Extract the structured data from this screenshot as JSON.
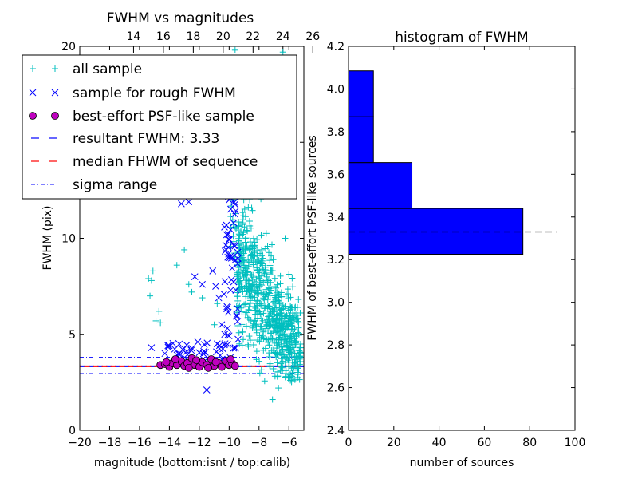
{
  "chart_data": [
    {
      "type": "scatter",
      "title": "FWHM vs magnitudes",
      "xlabel": "magnitude (bottom:isnt / top:calib)",
      "ylabel": "FWHM (pix)",
      "xlim": [
        -20,
        -5
      ],
      "ylim": [
        0,
        20
      ],
      "xticks": [
        "−20",
        "−18",
        "−16",
        "−14",
        "−12",
        "−10",
        "−8",
        "−6"
      ],
      "xtick_values": [
        -20,
        -18,
        -16,
        -14,
        -12,
        -10,
        -8,
        -6
      ],
      "top_xticks": [
        "14",
        "16",
        "18",
        "20",
        "22",
        "24",
        "26"
      ],
      "top_xtick_values": [
        -16.4,
        -14.4,
        -12.4,
        -10.4,
        -8.4,
        -6.4,
        -4.4
      ],
      "yticks": [
        "0",
        "5",
        "10",
        "15",
        "20"
      ],
      "ytick_values": [
        0,
        5,
        10,
        15,
        20
      ],
      "legend_position": "top-left",
      "colors": {
        "all": "#00bfbf",
        "rough": "#0000ff",
        "best": "#bf00bf",
        "result_line": "#0000ff",
        "median_line": "#ff0000",
        "sigma_line": "#0000ff"
      },
      "resultant_fwhm": 3.33,
      "median_fwhm": 3.33,
      "sigma_range": [
        2.95,
        3.8
      ],
      "series": [
        {
          "name": "all sample",
          "marker": "+",
          "points": [
            [
              -15.4,
              7.9
            ],
            [
              -15.2,
              7.8
            ],
            [
              -15.1,
              8.3
            ],
            [
              -15.3,
              7.0
            ],
            [
              -14.7,
              6.2
            ],
            [
              -14.9,
              5.7
            ],
            [
              -14.6,
              5.6
            ],
            [
              -13.5,
              8.6
            ],
            [
              -13.0,
              9.4
            ],
            [
              -12.7,
              7.6
            ],
            [
              -12.5,
              7.2
            ],
            [
              -11.8,
              6.9
            ],
            [
              -11.0,
              5.5
            ],
            [
              -10.8,
              6.6
            ],
            [
              -9.6,
              19.8
            ],
            [
              -9.1,
              18.6
            ],
            [
              -8.8,
              17.6
            ],
            [
              -8.3,
              19.1
            ],
            [
              -8.0,
              18.0
            ],
            [
              -7.4,
              18.5
            ],
            [
              -6.9,
              17.1
            ],
            [
              -6.4,
              19.7
            ],
            [
              -7.8,
              16.2
            ],
            [
              -9.4,
              15.6
            ],
            [
              -8.6,
              15.0
            ],
            [
              -6.0,
              14.5
            ],
            [
              -6.5,
              3.3
            ],
            [
              -6.2,
              2.8
            ],
            [
              -5.9,
              2.6
            ],
            [
              -7.1,
              1.6
            ],
            [
              -6.7,
              2.2
            ]
          ]
        },
        {
          "name": "sample for rough FWHM",
          "marker": "x",
          "points": [
            [
              -15.2,
              4.3
            ],
            [
              -13.2,
              11.8
            ],
            [
              -12.7,
              11.9
            ],
            [
              -12.3,
              8.0
            ],
            [
              -11.8,
              7.6
            ],
            [
              -11.0,
              13.3
            ],
            [
              -11.1,
              8.3
            ],
            [
              -10.9,
              7.5
            ],
            [
              -10.7,
              6.9
            ],
            [
              -10.5,
              5.5
            ],
            [
              -10.8,
              4.5
            ],
            [
              -10.2,
              9.4
            ],
            [
              -10.0,
              12.0
            ],
            [
              -9.8,
              12.4
            ],
            [
              -9.7,
              10.8
            ],
            [
              -9.9,
              7.3
            ],
            [
              -10.1,
              6.4
            ],
            [
              -10.3,
              5.0
            ],
            [
              -9.6,
              4.3
            ],
            [
              -9.5,
              6.0
            ],
            [
              -10.6,
              3.9
            ],
            [
              -11.5,
              2.1
            ],
            [
              -12.1,
              4.6
            ],
            [
              -13.1,
              4.2
            ],
            [
              -14.3,
              4.0
            ],
            [
              -9.4,
              16.0
            ],
            [
              -9.3,
              13.2
            ]
          ]
        },
        {
          "name": "best-effort PSF-like sample",
          "marker": "o",
          "points": [
            [
              -14.6,
              3.4
            ],
            [
              -14.3,
              3.45
            ],
            [
              -14.0,
              3.3
            ],
            [
              -13.8,
              3.5
            ],
            [
              -13.5,
              3.4
            ],
            [
              -13.2,
              3.6
            ],
            [
              -13.0,
              3.35
            ],
            [
              -12.8,
              3.5
            ],
            [
              -12.5,
              3.75
            ],
            [
              -12.3,
              3.4
            ],
            [
              -12.0,
              3.3
            ],
            [
              -11.8,
              3.55
            ],
            [
              -11.5,
              3.4
            ],
            [
              -11.2,
              3.7
            ],
            [
              -11.0,
              3.35
            ],
            [
              -10.7,
              3.5
            ],
            [
              -10.5,
              3.3
            ],
            [
              -10.2,
              3.6
            ],
            [
              -10.0,
              3.4
            ],
            [
              -9.8,
              3.5
            ],
            [
              -9.6,
              3.35
            ],
            [
              -13.6,
              3.7
            ],
            [
              -12.2,
              3.65
            ],
            [
              -11.4,
              3.25
            ],
            [
              -10.9,
              3.55
            ],
            [
              -9.9,
              3.7
            ],
            [
              -14.2,
              3.55
            ],
            [
              -12.7,
              3.25
            ]
          ]
        }
      ],
      "legend": [
        {
          "label": "all sample",
          "marker": "+"
        },
        {
          "label": "sample for rough FWHM",
          "marker": "x"
        },
        {
          "label": "best-effort PSF-like sample",
          "marker": "o"
        },
        {
          "label": "resultant FWHM: 3.33",
          "marker": "dashed"
        },
        {
          "label": "median FHWM of sequence",
          "marker": "dashed"
        },
        {
          "label": "sigma range",
          "marker": "dashdot"
        }
      ]
    },
    {
      "type": "bar",
      "orientation": "horizontal",
      "title": "histogram of FWHM",
      "xlabel": "number of sources",
      "ylabel": "FWHM of best-effort PSF-like sources",
      "xlim": [
        0,
        100
      ],
      "ylim": [
        2.4,
        4.2
      ],
      "xticks": [
        "0",
        "20",
        "40",
        "60",
        "80",
        "100"
      ],
      "xtick_values": [
        0,
        20,
        40,
        60,
        80,
        100
      ],
      "yticks": [
        "2.4",
        "2.6",
        "2.8",
        "3.0",
        "3.2",
        "3.4",
        "3.6",
        "3.8",
        "4.0",
        "4.2"
      ],
      "ytick_values": [
        2.4,
        2.6,
        2.8,
        3.0,
        3.2,
        3.4,
        3.6,
        3.8,
        4.0,
        4.2
      ],
      "bar_color": "#0000ff",
      "bins": [
        {
          "low": 3.225,
          "high": 3.44,
          "count": 77
        },
        {
          "low": 3.44,
          "high": 3.655,
          "count": 28
        },
        {
          "low": 3.655,
          "high": 3.87,
          "count": 11
        },
        {
          "low": 3.87,
          "high": 4.085,
          "count": 11
        }
      ],
      "resultant_fwhm": 3.33,
      "result_line_range": [
        0,
        92
      ]
    }
  ]
}
